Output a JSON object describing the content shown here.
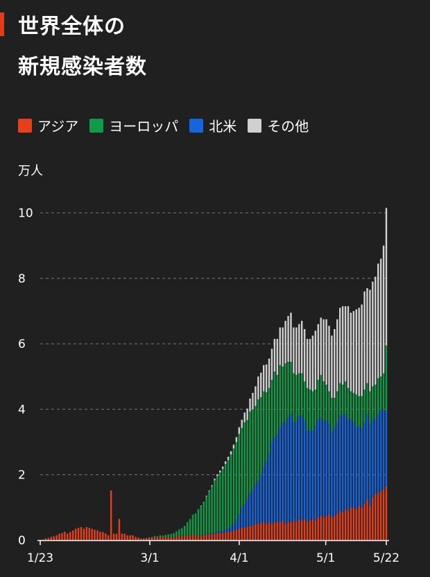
{
  "title": {
    "line1": "世界全体の",
    "line2": "新規感染者数"
  },
  "legend": [
    {
      "label": "アジア",
      "color": "#e5401b"
    },
    {
      "label": "ヨーロッパ",
      "color": "#119b46"
    },
    {
      "label": "北米",
      "color": "#1565e0"
    },
    {
      "label": "その他",
      "color": "#d0d0d0"
    }
  ],
  "unit_label": "万人",
  "chart_data": {
    "type": "bar",
    "stacked": true,
    "y_unit": "万人",
    "ylim": [
      0,
      10.5
    ],
    "yticks": [
      0,
      2,
      4,
      6,
      8,
      10
    ],
    "xticks": [
      {
        "label": "1/23",
        "date": "2020-01-23"
      },
      {
        "label": "3/1",
        "date": "2020-03-01"
      },
      {
        "label": "4/1",
        "date": "2020-04-01"
      },
      {
        "label": "5/1",
        "date": "2020-05-01"
      },
      {
        "label": "5/22",
        "date": "2020-05-22"
      }
    ],
    "x_start": "2020-01-23",
    "x_end": "2020-05-22",
    "grid": true,
    "legend_position": "top-left",
    "series": [
      {
        "name": "アジア",
        "color": "#e5401b",
        "values": [
          0.01,
          0.02,
          0.05,
          0.07,
          0.1,
          0.12,
          0.15,
          0.2,
          0.22,
          0.26,
          0.2,
          0.25,
          0.3,
          0.35,
          0.38,
          0.4,
          0.35,
          0.4,
          0.38,
          0.35,
          0.32,
          0.3,
          0.26,
          0.25,
          0.21,
          0.15,
          1.52,
          0.2,
          0.2,
          0.65,
          0.2,
          0.2,
          0.15,
          0.15,
          0.15,
          0.1,
          0.08,
          0.05,
          0.05,
          0.06,
          0.07,
          0.08,
          0.1,
          0.08,
          0.1,
          0.09,
          0.1,
          0.1,
          0.09,
          0.1,
          0.12,
          0.13,
          0.12,
          0.14,
          0.15,
          0.15,
          0.18,
          0.12,
          0.15,
          0.14,
          0.15,
          0.18,
          0.18,
          0.18,
          0.2,
          0.22,
          0.22,
          0.22,
          0.25,
          0.25,
          0.27,
          0.3,
          0.3,
          0.35,
          0.38,
          0.4,
          0.42,
          0.43,
          0.45,
          0.5,
          0.5,
          0.52,
          0.55,
          0.52,
          0.55,
          0.5,
          0.55,
          0.55,
          0.55,
          0.6,
          0.5,
          0.55,
          0.55,
          0.6,
          0.55,
          0.65,
          0.6,
          0.65,
          0.55,
          0.6,
          0.65,
          0.6,
          0.7,
          0.75,
          0.7,
          0.75,
          0.8,
          0.7,
          0.75,
          0.8,
          0.9,
          0.85,
          0.95,
          0.9,
          1.0,
          1.0,
          0.95,
          1.05,
          1.0,
          1.1,
          1.25,
          1.05,
          1.3,
          1.4,
          1.45,
          1.5,
          1.55,
          1.65
        ]
      },
      {
        "name": "北米",
        "color": "#1565e0",
        "values": [
          0,
          0,
          0,
          0,
          0,
          0,
          0,
          0,
          0,
          0,
          0,
          0,
          0,
          0,
          0,
          0,
          0,
          0,
          0,
          0,
          0,
          0,
          0,
          0,
          0,
          0,
          0,
          0,
          0,
          0,
          0,
          0,
          0,
          0,
          0,
          0,
          0,
          0,
          0,
          0,
          0,
          0,
          0,
          0,
          0,
          0,
          0,
          0,
          0,
          0,
          0,
          0,
          0,
          0,
          0,
          0,
          0,
          0,
          0,
          0.01,
          0.01,
          0.01,
          0.02,
          0.02,
          0.03,
          0.04,
          0.05,
          0.06,
          0.08,
          0.1,
          0.15,
          0.2,
          0.3,
          0.45,
          0.6,
          0.7,
          0.85,
          1.0,
          1.1,
          1.2,
          1.3,
          1.5,
          1.7,
          1.9,
          2.1,
          2.5,
          2.6,
          2.7,
          2.9,
          3.0,
          3.1,
          3.2,
          3.3,
          3.0,
          3.1,
          3.15,
          3.2,
          3.0,
          2.8,
          2.75,
          2.7,
          2.9,
          3.0,
          3.0,
          2.95,
          2.9,
          2.75,
          2.6,
          2.7,
          2.8,
          2.9,
          3.0,
          2.9,
          2.8,
          2.7,
          2.6,
          2.5,
          2.45,
          2.4,
          2.5,
          2.6,
          2.5,
          2.4,
          2.3,
          2.4,
          2.5,
          2.45,
          2.3
        ]
      },
      {
        "name": "ヨーロッパ",
        "color": "#119b46",
        "values": [
          0,
          0,
          0,
          0,
          0,
          0,
          0,
          0,
          0,
          0,
          0,
          0,
          0,
          0,
          0,
          0,
          0,
          0,
          0,
          0,
          0,
          0,
          0,
          0,
          0,
          0,
          0,
          0,
          0,
          0,
          0,
          0,
          0,
          0,
          0,
          0,
          0,
          0,
          0,
          0.01,
          0.02,
          0.02,
          0.03,
          0.04,
          0.05,
          0.05,
          0.06,
          0.08,
          0.1,
          0.12,
          0.15,
          0.2,
          0.25,
          0.3,
          0.4,
          0.5,
          0.6,
          0.7,
          0.8,
          0.9,
          1.0,
          1.15,
          1.3,
          1.45,
          1.6,
          1.7,
          1.8,
          1.9,
          2.0,
          2.1,
          2.2,
          2.3,
          2.4,
          2.45,
          2.45,
          2.5,
          2.4,
          2.5,
          2.45,
          2.4,
          2.5,
          2.35,
          2.3,
          2.1,
          2.0,
          1.9,
          2.0,
          1.8,
          1.9,
          1.7,
          1.8,
          1.7,
          1.6,
          1.5,
          1.4,
          1.3,
          1.3,
          1.2,
          1.3,
          1.25,
          1.2,
          1.1,
          1.2,
          1.3,
          1.2,
          1.1,
          1.0,
          1.05,
          0.9,
          0.95,
          1.0,
          0.9,
          1.0,
          0.95,
          0.85,
          0.9,
          1.0,
          0.9,
          1.0,
          1.0,
          0.95,
          1.0,
          1.0,
          1.05,
          1.1,
          1.0,
          1.1,
          2.0
        ]
      },
      {
        "name": "その他",
        "color": "#d0d0d0",
        "values": [
          0,
          0,
          0,
          0,
          0,
          0,
          0,
          0,
          0,
          0,
          0,
          0,
          0,
          0,
          0,
          0,
          0,
          0,
          0,
          0,
          0,
          0,
          0,
          0,
          0,
          0,
          0,
          0,
          0,
          0,
          0,
          0,
          0,
          0,
          0,
          0,
          0,
          0,
          0,
          0,
          0,
          0,
          0,
          0,
          0,
          0,
          0,
          0,
          0,
          0,
          0,
          0,
          0,
          0,
          0,
          0,
          0,
          0,
          0,
          0.01,
          0.01,
          0.02,
          0.02,
          0.03,
          0.05,
          0.05,
          0.06,
          0.07,
          0.08,
          0.1,
          0.1,
          0.12,
          0.15,
          0.2,
          0.25,
          0.3,
          0.35,
          0.4,
          0.5,
          0.6,
          0.7,
          0.75,
          0.8,
          0.85,
          0.9,
          0.95,
          1.0,
          1.1,
          1.15,
          1.2,
          1.3,
          1.4,
          1.5,
          1.4,
          1.45,
          1.5,
          1.6,
          1.6,
          1.5,
          1.55,
          1.7,
          1.8,
          1.7,
          1.75,
          1.9,
          2.0,
          2.0,
          1.9,
          2.1,
          2.2,
          2.3,
          2.4,
          2.3,
          2.5,
          2.4,
          2.5,
          2.6,
          2.7,
          2.8,
          3.0,
          2.9,
          3.1,
          3.2,
          3.3,
          3.5,
          3.6,
          3.9,
          4.2
        ]
      }
    ]
  }
}
